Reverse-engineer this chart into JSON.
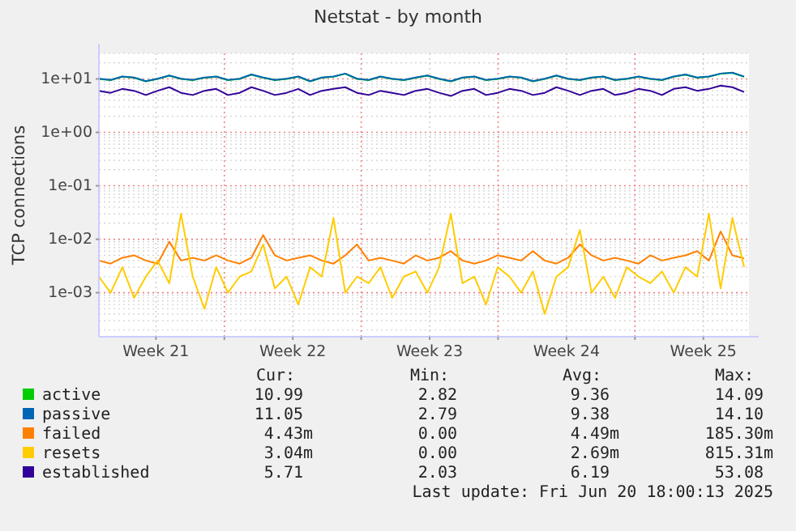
{
  "chart_data": {
    "type": "line",
    "title": "Netstat - by month",
    "ylabel": "TCP connections",
    "log": true,
    "grid": true,
    "legend": "bottom",
    "marker": "none",
    "xlim": [
      "2025-05-19T14:00",
      "2025-06-21T20:00"
    ],
    "xticks": [
      {
        "value": "2025-05-22T12:00",
        "label": "Week 21"
      },
      {
        "value": "2025-05-26",
        "label": null
      },
      {
        "value": "2025-05-29T12:00",
        "label": "Week 22"
      },
      {
        "value": "2025-06-02",
        "label": null
      },
      {
        "value": "2025-06-05T12:00",
        "label": "Week 23"
      },
      {
        "value": "2025-06-09",
        "label": null
      },
      {
        "value": "2025-06-12T12:00",
        "label": "Week 24"
      },
      {
        "value": "2025-06-16",
        "label": null
      },
      {
        "value": "2025-06-19T12:00",
        "label": "Week 25"
      }
    ],
    "ylim": [
      0.00015,
      30
    ],
    "yticks": [
      {
        "value": 0.001,
        "label": "1e-03"
      },
      {
        "value": 0.01,
        "label": "1e-02"
      },
      {
        "value": 0.1,
        "label": "1e-01"
      },
      {
        "value": 1,
        "label": "1e+00"
      },
      {
        "value": 10,
        "label": "1e+01"
      }
    ],
    "x": [
      "2025-05-19T14:00",
      "2025-05-20T04:24",
      "2025-05-20T18:48",
      "2025-05-21T09:12",
      "2025-05-21T23:36",
      "2025-05-22T14:00",
      "2025-05-23T04:24",
      "2025-05-23T18:48",
      "2025-05-24T09:12",
      "2025-05-24T23:36",
      "2025-05-25T14:00",
      "2025-05-26T04:24",
      "2025-05-26T18:48",
      "2025-05-27T09:12",
      "2025-05-27T23:36",
      "2025-05-28T14:00",
      "2025-05-29T04:24",
      "2025-05-29T18:48",
      "2025-05-30T09:12",
      "2025-05-30T23:36",
      "2025-05-31T14:00",
      "2025-06-01T04:24",
      "2025-06-01T18:48",
      "2025-06-02T09:12",
      "2025-06-02T23:36",
      "2025-06-03T14:00",
      "2025-06-04T04:24",
      "2025-06-04T18:48",
      "2025-06-05T09:12",
      "2025-06-05T23:36",
      "2025-06-06T14:00",
      "2025-06-07T04:24",
      "2025-06-07T18:48",
      "2025-06-08T09:12",
      "2025-06-08T23:36",
      "2025-06-09T14:00",
      "2025-06-10T04:24",
      "2025-06-10T18:48",
      "2025-06-11T09:12",
      "2025-06-11T23:36",
      "2025-06-12T14:00",
      "2025-06-13T04:24",
      "2025-06-13T18:48",
      "2025-06-14T09:12",
      "2025-06-14T23:36",
      "2025-06-15T14:00",
      "2025-06-16T04:24",
      "2025-06-16T18:48",
      "2025-06-17T09:12",
      "2025-06-17T23:36",
      "2025-06-18T14:00",
      "2025-06-19T04:24",
      "2025-06-19T18:48",
      "2025-06-20T09:12",
      "2025-06-20T23:36",
      "2025-06-21T14:00"
    ],
    "series": [
      {
        "name": "active",
        "color": "#00cc00",
        "values": [
          10,
          9.5,
          11,
          10.5,
          9,
          10,
          11.5,
          10,
          9.5,
          10.5,
          11,
          9.5,
          10,
          12,
          10.5,
          9.5,
          10,
          11,
          9,
          10.5,
          11,
          12.5,
          10,
          9.5,
          11,
          10,
          9.5,
          10.5,
          11.5,
          10,
          9,
          10.5,
          11,
          9.5,
          10,
          11,
          10.5,
          9,
          10,
          11.5,
          10,
          9.5,
          10.5,
          11,
          9.5,
          10,
          11,
          10,
          9.5,
          11,
          12,
          10.5,
          11,
          12.5,
          13,
          11
        ]
      },
      {
        "name": "passive",
        "color": "#0066b3",
        "values": [
          10.1,
          9.6,
          11.1,
          10.6,
          9.1,
          10.1,
          11.6,
          10.1,
          9.6,
          10.6,
          11.1,
          9.6,
          10.1,
          12.1,
          10.6,
          9.6,
          10.1,
          11.1,
          9.1,
          10.6,
          11.1,
          12.6,
          10.1,
          9.6,
          11.1,
          10.1,
          9.6,
          10.6,
          11.6,
          10.1,
          9.1,
          10.6,
          11.1,
          9.6,
          10.1,
          11.1,
          10.6,
          9.1,
          10.1,
          11.6,
          10.1,
          9.6,
          10.6,
          11.1,
          9.6,
          10.1,
          11.1,
          10.1,
          9.6,
          11.1,
          12.1,
          10.6,
          11.1,
          12.6,
          13.1,
          11.05
        ]
      },
      {
        "name": "failed",
        "color": "#ff8000",
        "values": [
          0.004,
          0.0035,
          0.0045,
          0.005,
          0.004,
          0.0035,
          0.009,
          0.004,
          0.0045,
          0.004,
          0.005,
          0.004,
          0.0035,
          0.0045,
          0.012,
          0.005,
          0.004,
          0.0045,
          0.005,
          0.004,
          0.0035,
          0.005,
          0.008,
          0.004,
          0.0045,
          0.004,
          0.0035,
          0.005,
          0.004,
          0.0045,
          0.006,
          0.004,
          0.0035,
          0.004,
          0.005,
          0.0045,
          0.004,
          0.006,
          0.004,
          0.0035,
          0.0045,
          0.008,
          0.005,
          0.004,
          0.0045,
          0.004,
          0.0035,
          0.005,
          0.004,
          0.0045,
          0.005,
          0.006,
          0.004,
          0.014,
          0.005,
          0.0044
        ]
      },
      {
        "name": "resets",
        "color": "#ffcc00",
        "values": [
          0.002,
          0.001,
          0.003,
          0.0008,
          0.002,
          0.004,
          0.0015,
          0.03,
          0.002,
          0.0005,
          0.003,
          0.001,
          0.002,
          0.0025,
          0.008,
          0.0012,
          0.002,
          0.0006,
          0.003,
          0.002,
          0.025,
          0.001,
          0.002,
          0.0015,
          0.003,
          0.0008,
          0.002,
          0.0025,
          0.001,
          0.003,
          0.03,
          0.0015,
          0.002,
          0.0006,
          0.003,
          0.002,
          0.001,
          0.0025,
          0.0004,
          0.002,
          0.003,
          0.015,
          0.001,
          0.002,
          0.0008,
          0.003,
          0.002,
          0.0015,
          0.0025,
          0.001,
          0.003,
          0.002,
          0.03,
          0.0012,
          0.025,
          0.003
        ]
      },
      {
        "name": "established",
        "color": "#330099",
        "values": [
          6,
          5.5,
          6.5,
          6,
          5,
          6,
          7,
          5.5,
          5,
          6,
          6.5,
          5,
          5.5,
          7,
          6,
          5,
          5.5,
          6.5,
          5,
          6,
          6.5,
          7,
          5.5,
          5,
          6,
          5.5,
          5,
          6,
          6.5,
          5.5,
          4.8,
          6,
          6.5,
          5,
          5.5,
          6.5,
          6,
          5,
          5.5,
          7,
          6,
          5,
          6,
          6.5,
          5,
          5.5,
          6.5,
          6,
          5,
          6.5,
          7,
          6,
          6.5,
          7.5,
          7,
          5.71
        ]
      }
    ],
    "annotations": [
      "Cur:",
      "Min:",
      "Avg:",
      "Max:",
      "10.99",
      "2.82",
      "9.36",
      "14.09",
      "11.05",
      "2.79",
      "9.38",
      "14.10",
      "4.43m",
      "0.00",
      "4.49m",
      "185.30m",
      "3.04m",
      "0.00",
      "2.69m",
      "815.31m",
      "5.71",
      "2.03",
      "6.19",
      "53.08",
      "Last update: Fri Jun 20 18:00:13 2025"
    ]
  }
}
